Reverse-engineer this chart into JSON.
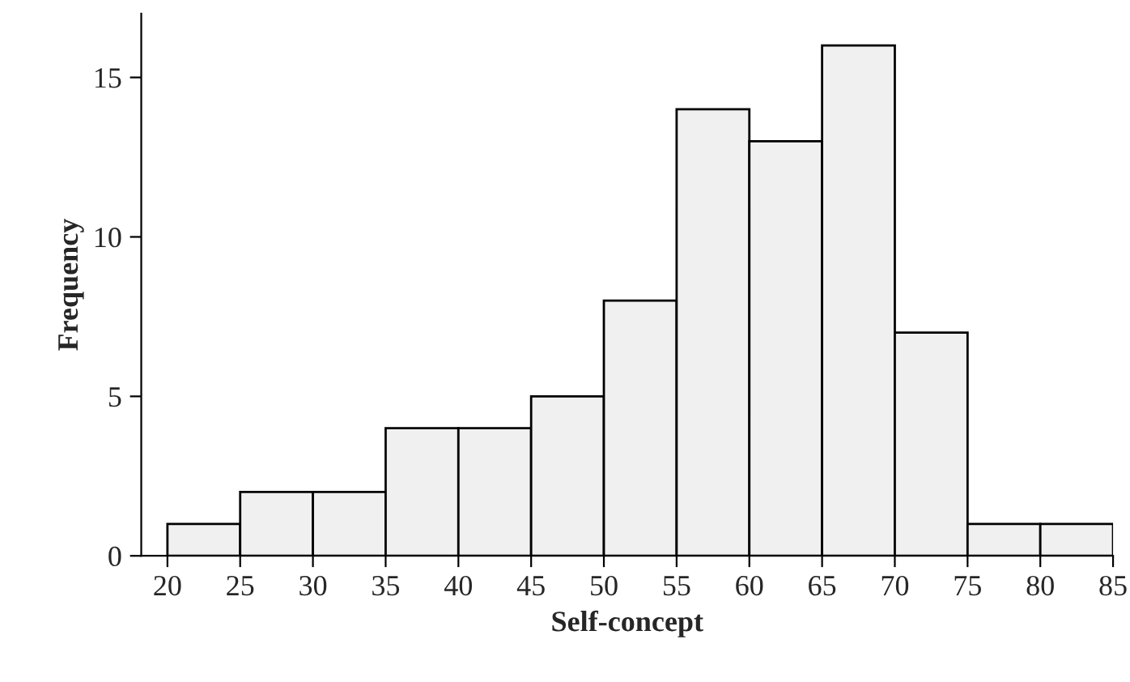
{
  "chart_data": {
    "type": "histogram",
    "xlabel": "Self-concept",
    "ylabel": "Frequency",
    "bins": [
      20,
      25,
      30,
      35,
      40,
      45,
      50,
      55,
      60,
      65,
      70,
      75,
      80,
      85
    ],
    "values": [
      1,
      2,
      2,
      4,
      4,
      5,
      8,
      14,
      13,
      16,
      7,
      1,
      1
    ],
    "color": "#f0f0f0",
    "xlim": [
      18.2,
      85
    ],
    "xticks": [
      20,
      25,
      30,
      35,
      40,
      45,
      50,
      55,
      60,
      65,
      70,
      75,
      80,
      85
    ],
    "ylim": [
      0,
      17
    ],
    "yticks": [
      0,
      5,
      10,
      15
    ],
    "grid": false
  }
}
